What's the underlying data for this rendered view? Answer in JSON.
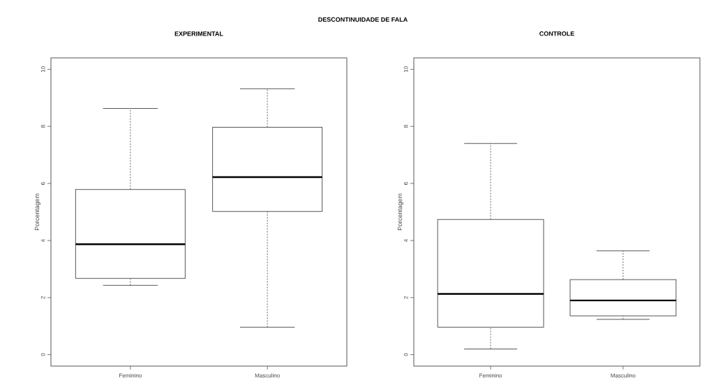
{
  "chart_data": [
    {
      "type": "box",
      "title": "EXPERIMENTAL",
      "ylabel": "Porcentagem",
      "annotations": [
        "DESCONTINUIDADE DE FALA"
      ],
      "categories": [
        "Feminino",
        "Masculino"
      ],
      "boxes": [
        {
          "low": 2.43,
          "q1": 2.67,
          "median": 3.87,
          "q3": 5.79,
          "high": 8.63
        },
        {
          "low": 0.96,
          "q1": 5.02,
          "median": 6.22,
          "q3": 7.97,
          "high": 9.32
        }
      ],
      "ylim": [
        -0.4,
        10.4
      ],
      "yticks": [
        0,
        2,
        4,
        6,
        8,
        10
      ]
    },
    {
      "type": "box",
      "title": "CONTROLE",
      "ylabel": "Porcentagem",
      "categories": [
        "Feminino",
        "Masculino"
      ],
      "boxes": [
        {
          "low": 0.2,
          "q1": 0.96,
          "median": 2.13,
          "q3": 4.74,
          "high": 7.4
        },
        {
          "low": 1.24,
          "q1": 1.36,
          "median": 1.9,
          "q3": 2.63,
          "high": 3.64
        }
      ],
      "ylim": [
        -0.4,
        10.4
      ],
      "yticks": [
        0,
        2,
        4,
        6,
        8,
        10
      ]
    }
  ]
}
